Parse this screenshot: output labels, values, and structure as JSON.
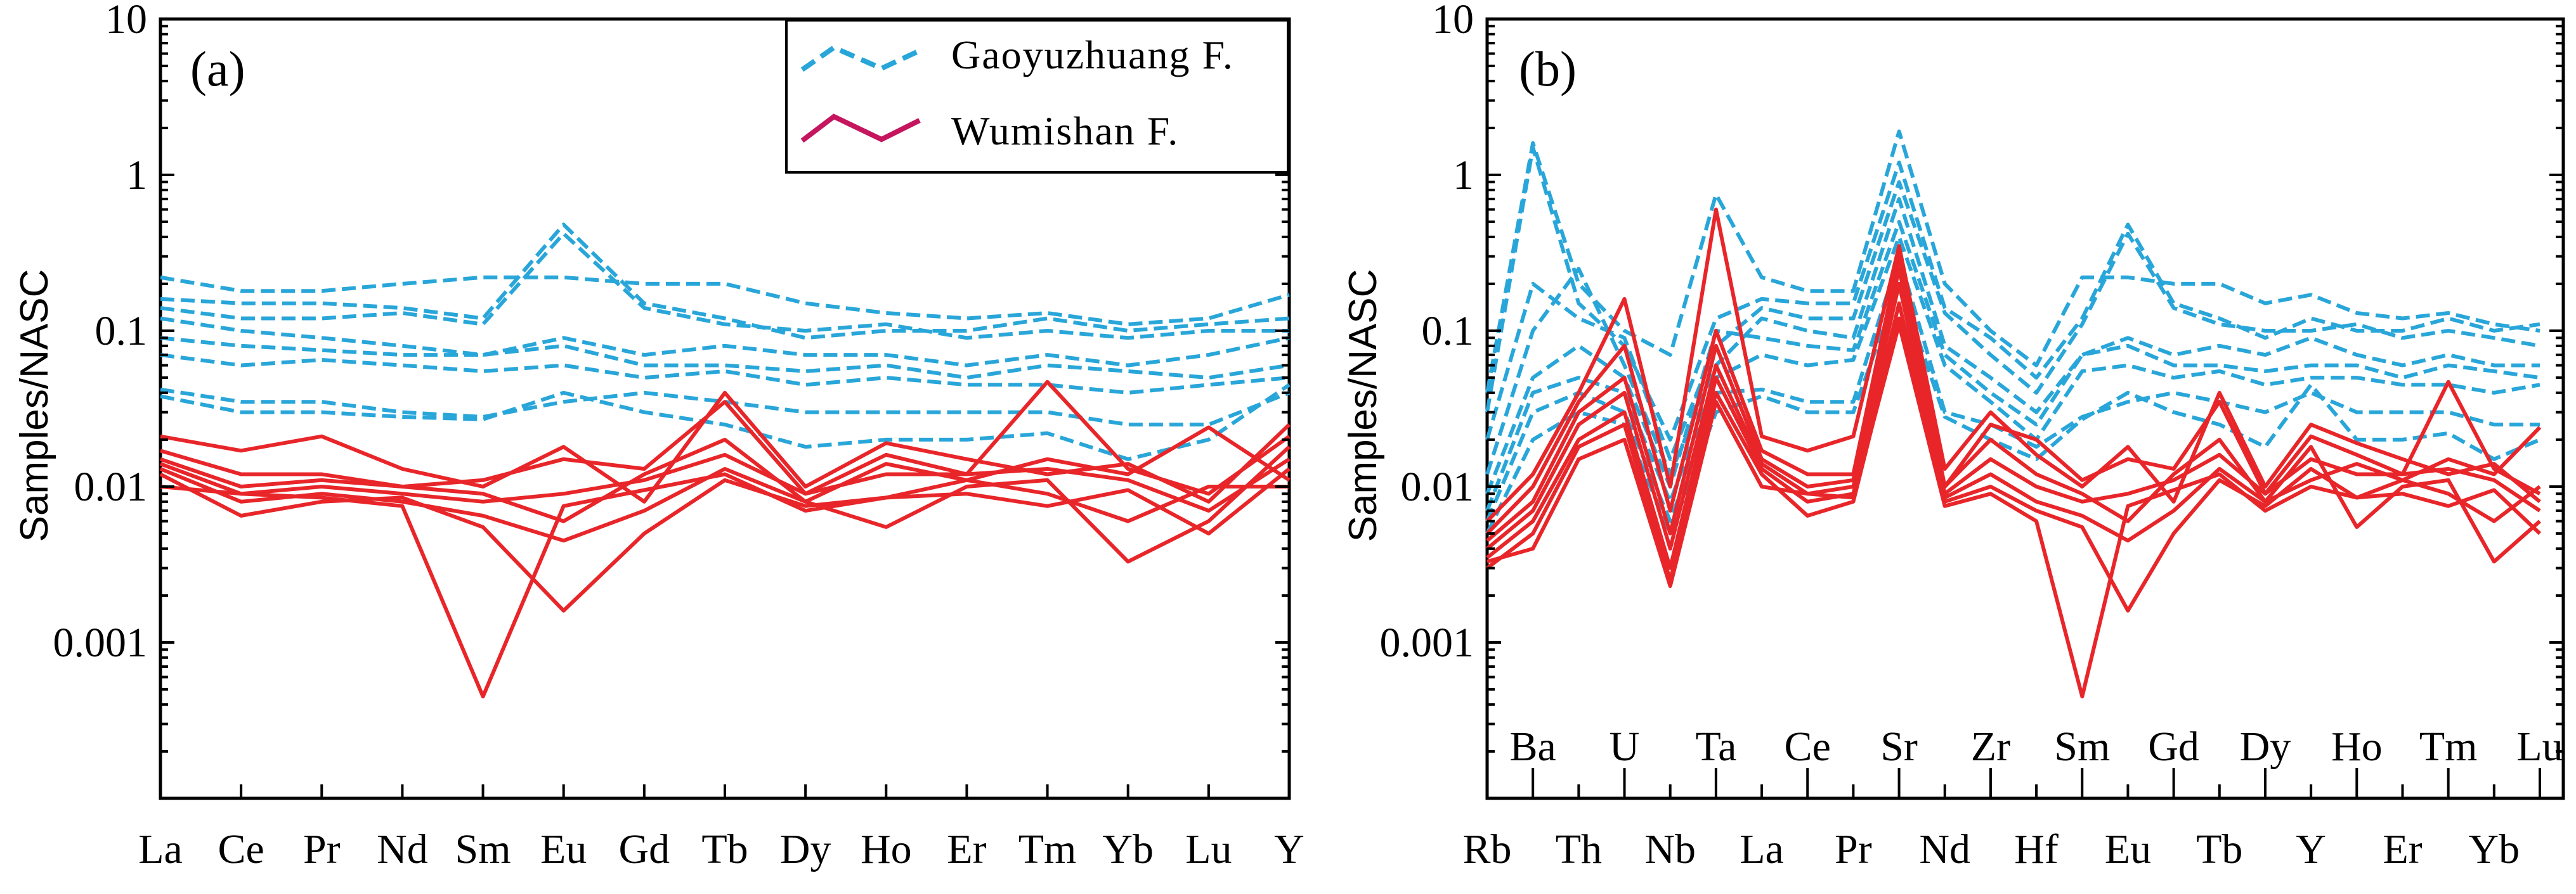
{
  "chart_data": [
    {
      "type": "line",
      "panel_label": "(a)",
      "ylabel": "Samples/NASC",
      "yscale": "log",
      "ylim": [
        0.0001,
        10
      ],
      "y_ticks": [
        "10",
        "1",
        "0.1",
        "0.01",
        "0.001"
      ],
      "categories": [
        "La",
        "Ce",
        "Pr",
        "Nd",
        "Sm",
        "Eu",
        "Gd",
        "Tb",
        "Dy",
        "Ho",
        "Er",
        "Tm",
        "Yb",
        "Lu",
        "Y"
      ],
      "legend": [
        {
          "name": "Gaoyuzhuang F.",
          "color": "#29a6d9",
          "style": "dashed"
        },
        {
          "name": "Wumishan F.",
          "color": "#c4155e",
          "style": "solid"
        }
      ],
      "series": [
        {
          "group": "Gaoyuzhuang F.",
          "values": [
            0.22,
            0.18,
            0.18,
            0.2,
            0.22,
            0.22,
            0.2,
            0.2,
            0.15,
            0.13,
            0.12,
            0.13,
            0.11,
            0.12,
            0.17
          ]
        },
        {
          "group": "Gaoyuzhuang F.",
          "values": [
            0.16,
            0.15,
            0.15,
            0.14,
            0.12,
            0.48,
            0.15,
            0.12,
            0.09,
            0.1,
            0.1,
            0.12,
            0.1,
            0.11,
            0.12
          ]
        },
        {
          "group": "Gaoyuzhuang F.",
          "values": [
            0.14,
            0.12,
            0.12,
            0.13,
            0.11,
            0.42,
            0.14,
            0.11,
            0.1,
            0.11,
            0.09,
            0.1,
            0.09,
            0.1,
            0.1
          ]
        },
        {
          "group": "Gaoyuzhuang F.",
          "values": [
            0.12,
            0.1,
            0.09,
            0.08,
            0.07,
            0.09,
            0.07,
            0.08,
            0.07,
            0.07,
            0.06,
            0.07,
            0.06,
            0.07,
            0.09
          ]
        },
        {
          "group": "Gaoyuzhuang F.",
          "values": [
            0.09,
            0.08,
            0.075,
            0.07,
            0.07,
            0.08,
            0.06,
            0.06,
            0.055,
            0.06,
            0.05,
            0.06,
            0.055,
            0.05,
            0.06
          ]
        },
        {
          "group": "Gaoyuzhuang F.",
          "values": [
            0.07,
            0.06,
            0.065,
            0.06,
            0.055,
            0.06,
            0.05,
            0.055,
            0.045,
            0.05,
            0.045,
            0.045,
            0.04,
            0.045,
            0.05
          ]
        },
        {
          "group": "Gaoyuzhuang F.",
          "values": [
            0.042,
            0.035,
            0.035,
            0.03,
            0.028,
            0.035,
            0.04,
            0.035,
            0.03,
            0.03,
            0.03,
            0.03,
            0.025,
            0.025,
            0.04
          ]
        },
        {
          "group": "Gaoyuzhuang F.",
          "values": [
            0.038,
            0.03,
            0.03,
            0.028,
            0.027,
            0.04,
            0.03,
            0.025,
            0.018,
            0.02,
            0.02,
            0.022,
            0.015,
            0.02,
            0.045
          ]
        },
        {
          "group": "Wumishan F.",
          "values": [
            0.021,
            0.017,
            0.021,
            0.013,
            0.01,
            0.018,
            0.008,
            0.04,
            0.01,
            0.019,
            0.015,
            0.012,
            0.014,
            0.008,
            0.025
          ]
        },
        {
          "group": "Wumishan F.",
          "values": [
            0.017,
            0.012,
            0.012,
            0.01,
            0.011,
            0.015,
            0.013,
            0.035,
            0.009,
            0.016,
            0.012,
            0.047,
            0.013,
            0.009,
            0.021
          ]
        },
        {
          "group": "Wumishan F.",
          "values": [
            0.015,
            0.01,
            0.011,
            0.01,
            0.009,
            0.006,
            0.012,
            0.02,
            0.008,
            0.014,
            0.011,
            0.015,
            0.012,
            0.024,
            0.011
          ]
        },
        {
          "group": "Wumishan F.",
          "values": [
            0.014,
            0.009,
            0.01,
            0.009,
            0.008,
            0.009,
            0.011,
            0.016,
            0.009,
            0.012,
            0.012,
            0.013,
            0.011,
            0.007,
            0.015
          ]
        },
        {
          "group": "Wumishan F.",
          "values": [
            0.013,
            0.008,
            0.009,
            0.008,
            0.0065,
            0.0045,
            0.007,
            0.013,
            0.008,
            0.0055,
            0.01,
            0.011,
            0.0033,
            0.006,
            0.018
          ]
        },
        {
          "group": "Wumishan F.",
          "values": [
            0.012,
            0.0065,
            0.008,
            0.0085,
            0.0055,
            0.0016,
            0.005,
            0.011,
            0.0075,
            0.0085,
            0.009,
            0.0075,
            0.0095,
            0.005,
            0.013
          ]
        },
        {
          "group": "Wumishan F.",
          "values": [
            0.01,
            0.009,
            0.0085,
            0.0075,
            0.00045,
            0.0075,
            0.0095,
            0.012,
            0.007,
            0.0085,
            0.011,
            0.009,
            0.006,
            0.01,
            0.01
          ]
        }
      ]
    },
    {
      "type": "line",
      "panel_label": "(b)",
      "ylabel": "Samples/NASC",
      "yscale": "log",
      "ylim": [
        0.0001,
        10
      ],
      "y_ticks": [
        "10",
        "1",
        "0.1",
        "0.01",
        "0.001"
      ],
      "categories": [
        "Rb",
        "Ba",
        "Th",
        "U",
        "Nb",
        "Ta",
        "La",
        "Ce",
        "Pr",
        "Sr",
        "Nd",
        "Zr",
        "Hf",
        "Sm",
        "Eu",
        "Gd",
        "Tb",
        "Dy",
        "Y",
        "Ho",
        "Er",
        "Tm",
        "Yb",
        "Lu"
      ],
      "series": [
        {
          "group": "Gaoyuzhuang F.",
          "values": [
            0.04,
            1.6,
            0.2,
            0.1,
            0.07,
            0.75,
            0.22,
            0.18,
            0.18,
            1.9,
            0.2,
            0.1,
            0.06,
            0.22,
            0.22,
            0.2,
            0.2,
            0.15,
            0.17,
            0.13,
            0.12,
            0.13,
            0.11,
            0.1
          ]
        },
        {
          "group": "Gaoyuzhuang F.",
          "values": [
            0.03,
            1.5,
            0.15,
            0.08,
            0.02,
            0.12,
            0.16,
            0.15,
            0.15,
            1.2,
            0.14,
            0.09,
            0.05,
            0.12,
            0.48,
            0.15,
            0.12,
            0.09,
            0.12,
            0.1,
            0.1,
            0.12,
            0.1,
            0.11
          ]
        },
        {
          "group": "Gaoyuzhuang F.",
          "values": [
            0.02,
            0.2,
            0.12,
            0.09,
            0.015,
            0.08,
            0.14,
            0.12,
            0.12,
            0.9,
            0.13,
            0.07,
            0.04,
            0.11,
            0.42,
            0.14,
            0.11,
            0.1,
            0.1,
            0.11,
            0.09,
            0.1,
            0.09,
            0.08
          ]
        },
        {
          "group": "Gaoyuzhuang F.",
          "values": [
            0.012,
            0.1,
            0.25,
            0.06,
            0.012,
            0.06,
            0.12,
            0.1,
            0.09,
            0.7,
            0.08,
            0.05,
            0.03,
            0.07,
            0.09,
            0.07,
            0.08,
            0.07,
            0.09,
            0.07,
            0.06,
            0.07,
            0.06,
            0.06
          ]
        },
        {
          "group": "Gaoyuzhuang F.",
          "values": [
            0.009,
            0.05,
            0.08,
            0.05,
            0.01,
            0.1,
            0.09,
            0.08,
            0.075,
            0.5,
            0.07,
            0.04,
            0.025,
            0.07,
            0.08,
            0.06,
            0.06,
            0.055,
            0.06,
            0.06,
            0.05,
            0.06,
            0.055,
            0.05
          ]
        },
        {
          "group": "Gaoyuzhuang F.",
          "values": [
            0.007,
            0.04,
            0.05,
            0.04,
            0.008,
            0.05,
            0.07,
            0.06,
            0.065,
            0.4,
            0.06,
            0.035,
            0.02,
            0.055,
            0.06,
            0.05,
            0.055,
            0.045,
            0.05,
            0.05,
            0.045,
            0.045,
            0.04,
            0.045
          ]
        },
        {
          "group": "Gaoyuzhuang F.",
          "values": [
            0.006,
            0.03,
            0.04,
            0.03,
            0.006,
            0.04,
            0.042,
            0.035,
            0.035,
            0.3,
            0.03,
            0.025,
            0.018,
            0.028,
            0.035,
            0.04,
            0.035,
            0.03,
            0.04,
            0.03,
            0.03,
            0.03,
            0.025,
            0.025
          ]
        },
        {
          "group": "Gaoyuzhuang F.",
          "values": [
            0.005,
            0.02,
            0.03,
            0.025,
            0.005,
            0.03,
            0.038,
            0.03,
            0.03,
            0.2,
            0.028,
            0.02,
            0.015,
            0.027,
            0.04,
            0.03,
            0.025,
            0.018,
            0.045,
            0.02,
            0.02,
            0.022,
            0.015,
            0.02
          ]
        },
        {
          "group": "Wumishan F.",
          "values": [
            0.006,
            0.012,
            0.04,
            0.16,
            0.01,
            0.6,
            0.021,
            0.017,
            0.021,
            0.35,
            0.013,
            0.03,
            0.016,
            0.01,
            0.018,
            0.008,
            0.04,
            0.01,
            0.025,
            0.019,
            0.015,
            0.012,
            0.014,
            0.008
          ]
        },
        {
          "group": "Wumishan F.",
          "values": [
            0.005,
            0.01,
            0.035,
            0.08,
            0.007,
            0.1,
            0.017,
            0.012,
            0.012,
            0.3,
            0.01,
            0.025,
            0.02,
            0.011,
            0.015,
            0.013,
            0.035,
            0.009,
            0.021,
            0.016,
            0.012,
            0.047,
            0.013,
            0.009
          ]
        },
        {
          "group": "Wumishan F.",
          "values": [
            0.0045,
            0.008,
            0.03,
            0.05,
            0.005,
            0.08,
            0.015,
            0.01,
            0.011,
            0.25,
            0.01,
            0.02,
            0.012,
            0.009,
            0.006,
            0.012,
            0.02,
            0.008,
            0.011,
            0.014,
            0.011,
            0.015,
            0.012,
            0.024
          ]
        },
        {
          "group": "Wumishan F.",
          "values": [
            0.004,
            0.007,
            0.025,
            0.04,
            0.004,
            0.06,
            0.014,
            0.009,
            0.01,
            0.2,
            0.009,
            0.015,
            0.01,
            0.008,
            0.009,
            0.011,
            0.016,
            0.009,
            0.015,
            0.012,
            0.012,
            0.013,
            0.011,
            0.007
          ]
        },
        {
          "group": "Wumishan F.",
          "values": [
            0.0035,
            0.006,
            0.02,
            0.03,
            0.003,
            0.05,
            0.013,
            0.008,
            0.009,
            0.15,
            0.0085,
            0.012,
            0.008,
            0.0065,
            0.0045,
            0.007,
            0.013,
            0.008,
            0.018,
            0.0055,
            0.01,
            0.011,
            0.0033,
            0.006
          ]
        },
        {
          "group": "Wumishan F.",
          "values": [
            0.003,
            0.005,
            0.018,
            0.025,
            0.0025,
            0.04,
            0.012,
            0.0065,
            0.008,
            0.12,
            0.008,
            0.01,
            0.007,
            0.0055,
            0.0016,
            0.005,
            0.011,
            0.0075,
            0.013,
            0.0085,
            0.009,
            0.0075,
            0.0095,
            0.005
          ]
        },
        {
          "group": "Wumishan F.",
          "values": [
            0.0033,
            0.004,
            0.015,
            0.02,
            0.0023,
            0.035,
            0.01,
            0.009,
            0.0085,
            0.11,
            0.0075,
            0.009,
            0.006,
            0.00045,
            0.0075,
            0.0095,
            0.012,
            0.007,
            0.01,
            0.0085,
            0.011,
            0.009,
            0.006,
            0.01
          ]
        }
      ]
    }
  ]
}
